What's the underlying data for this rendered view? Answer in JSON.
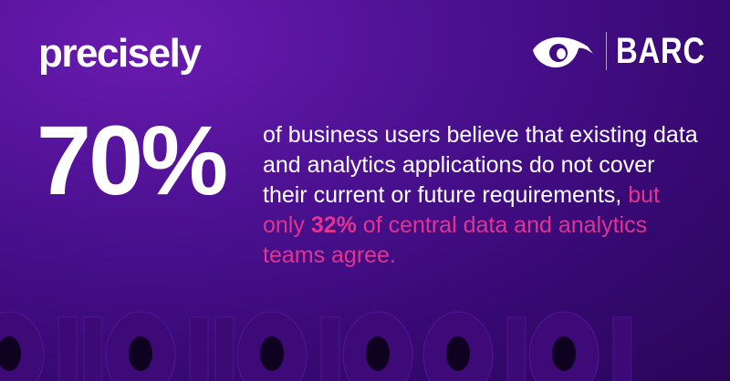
{
  "brand": {
    "logo_text": "precisely",
    "partner_logo_text": "BARC",
    "partner_icon": "eye-icon"
  },
  "stat": {
    "value": "70%",
    "line_1": "of business users believe that existing data and analytics applications do not cover their current or future requirements,",
    "highlight_prefix": "but only ",
    "highlight_value": "32%",
    "highlight_suffix": " of central data and analytics teams agree."
  },
  "colors": {
    "background": "#4a108f",
    "accent": "#e0348f",
    "text": "#ffffff"
  },
  "decor_binary": "0110110100101"
}
